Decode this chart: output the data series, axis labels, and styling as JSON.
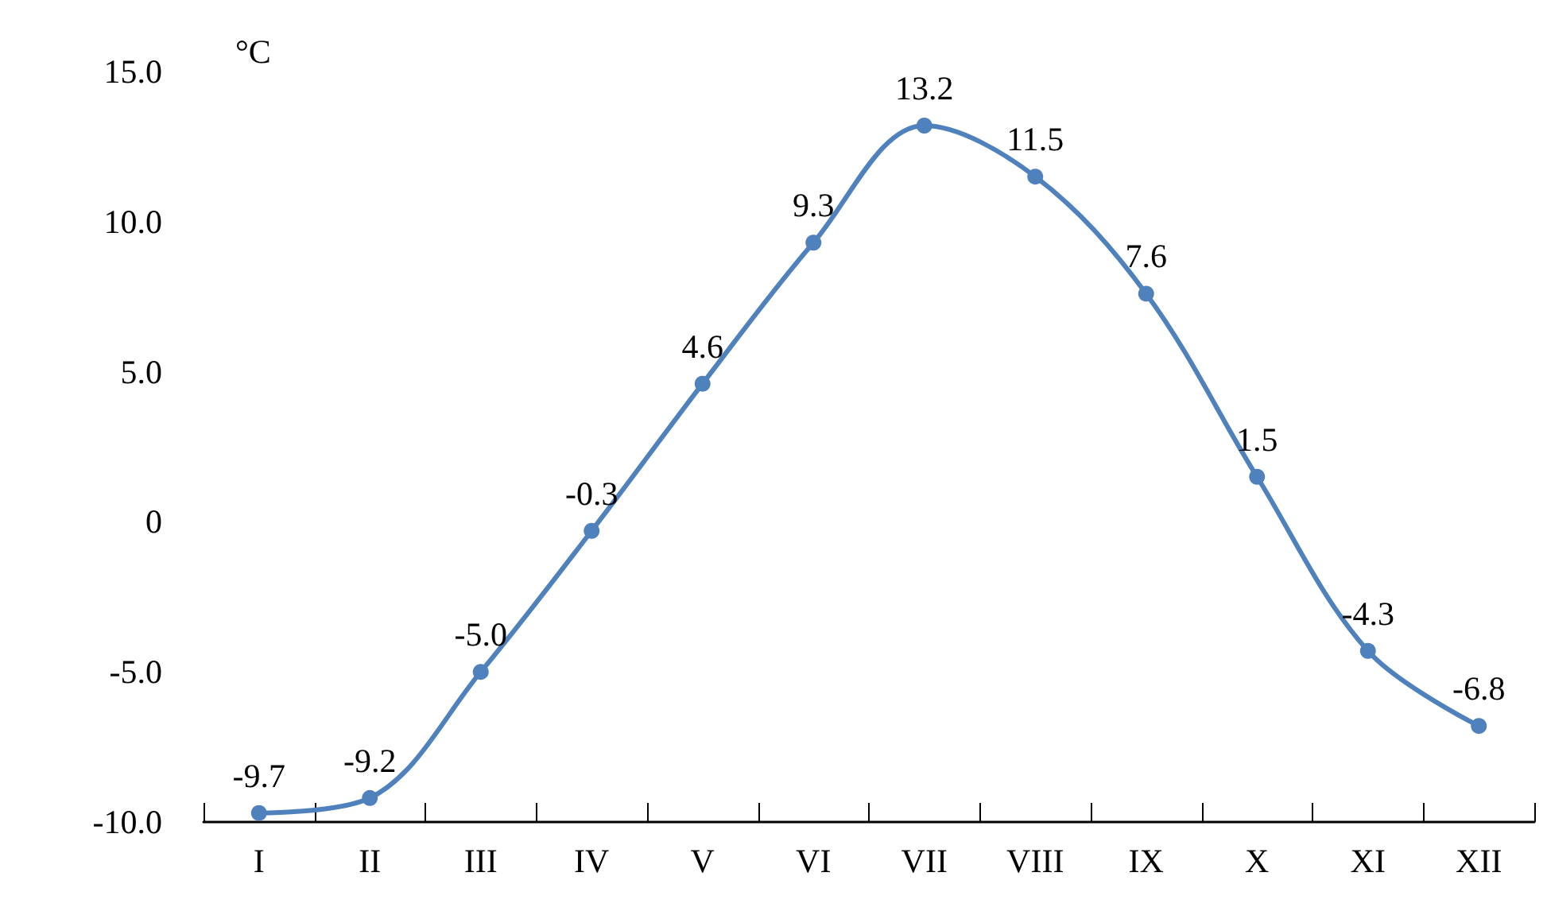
{
  "chart_data": {
    "type": "line",
    "ylabel": "°C",
    "categories": [
      "I",
      "II",
      "III",
      "IV",
      "V",
      "VI",
      "VII",
      "VIII",
      "IX",
      "X",
      "XI",
      "XII"
    ],
    "series": [
      {
        "color": "#4f81bd",
        "values": [
          -9.7,
          -9.2,
          -5.0,
          -0.3,
          4.6,
          9.3,
          13.2,
          11.5,
          7.6,
          1.5,
          -4.3,
          -6.8
        ],
        "value_labels": [
          "-9.7",
          "-9.2",
          "-5.0",
          "-0.3",
          "4.6",
          "9.3",
          "13.2",
          "11.5",
          "7.6",
          "1.5",
          "-4.3",
          "-6.8"
        ]
      }
    ],
    "ylim": [
      -10,
      15
    ],
    "yticks": [
      {
        "value": -10,
        "label": "-10.0"
      },
      {
        "value": -5,
        "label": "-5.0"
      },
      0,
      {
        "value": 5,
        "label": "5.0"
      },
      {
        "value": 10,
        "label": "10.0"
      },
      {
        "value": 15,
        "label": "15.0"
      }
    ],
    "marker": "circle",
    "line_style": "solid"
  }
}
